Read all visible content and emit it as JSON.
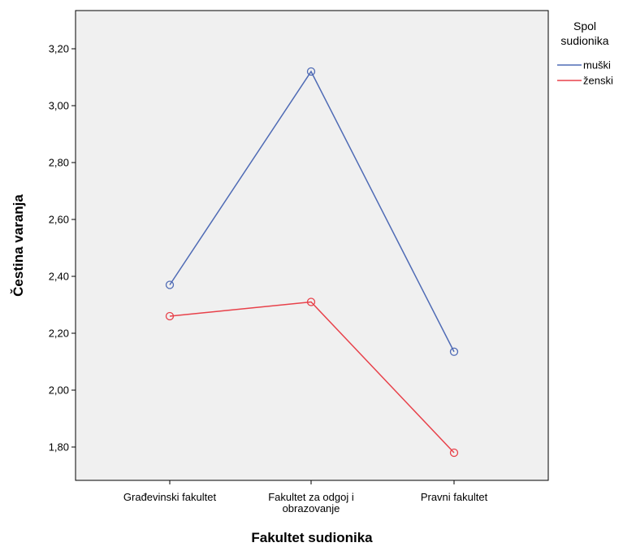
{
  "chart_data": {
    "type": "line",
    "xlabel": "Fakultet sudionika",
    "ylabel": "Čestina varanja",
    "categories": [
      [
        "Građevinski fakultet"
      ],
      [
        "Fakultet za odgoj i",
        "obrazovanje"
      ],
      [
        "Pravni fakultet"
      ]
    ],
    "yticks": [
      "1,80",
      "2,00",
      "2,20",
      "2,40",
      "2,60",
      "2,80",
      "3,00",
      "3,20"
    ],
    "ytick_values": [
      1.8,
      2.0,
      2.2,
      2.4,
      2.6,
      2.8,
      3.0,
      3.2
    ],
    "ylim": [
      1.65,
      3.3
    ],
    "grid": false,
    "legend": {
      "title_lines": [
        "Spol",
        "sudionika"
      ],
      "placement": "right"
    },
    "series": [
      {
        "name": "muški",
        "color": "#4f6bb5",
        "values": [
          2.37,
          3.12,
          2.135
        ]
      },
      {
        "name": "ženski",
        "color": "#e8414a",
        "values": [
          2.26,
          2.31,
          1.78
        ]
      }
    ]
  },
  "colors": {
    "plot_background": "#f0f0f0",
    "axis": "#000000"
  }
}
